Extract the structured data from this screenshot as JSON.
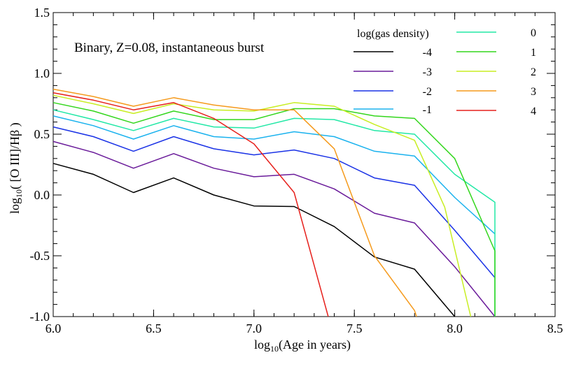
{
  "chart_data": {
    "type": "line",
    "annotation": "Binary, Z=0.08, instantaneous burst",
    "xlabel": {
      "prefix": "log",
      "sub": "10",
      "rest": "(Age in years)"
    },
    "ylabel": {
      "prefix": "log",
      "sub": "10",
      "rest": "( [O III]/Hβ )"
    },
    "xlim": [
      6.0,
      8.5
    ],
    "ylim": [
      -1.0,
      1.5
    ],
    "x_ticks": [
      6.0,
      6.5,
      7.0,
      7.5,
      8.0,
      8.5
    ],
    "x_tick_labels": [
      "6.0",
      "6.5",
      "7.0",
      "7.5",
      "8.0",
      "8.5"
    ],
    "y_ticks": [
      -1.0,
      -0.5,
      0.0,
      0.5,
      1.0,
      1.5
    ],
    "y_tick_labels": [
      "-1.0",
      "-0.5",
      "0.0",
      "0.5",
      "1.0",
      "1.5"
    ],
    "legend_title": "log(gas density)",
    "legend_placement": "top-right",
    "series": [
      {
        "name": "-4",
        "color": "#000000",
        "points": [
          [
            6.0,
            0.26
          ],
          [
            6.2,
            0.17
          ],
          [
            6.4,
            0.02
          ],
          [
            6.6,
            0.14
          ],
          [
            6.8,
            0.0
          ],
          [
            7.0,
            -0.09
          ],
          [
            7.2,
            -0.095
          ],
          [
            7.4,
            -0.26
          ],
          [
            7.6,
            -0.51
          ],
          [
            7.8,
            -0.61
          ],
          [
            8.0,
            -1.0
          ]
        ]
      },
      {
        "name": "-3",
        "color": "#6a1b9a",
        "points": [
          [
            6.0,
            0.44
          ],
          [
            6.2,
            0.35
          ],
          [
            6.4,
            0.22
          ],
          [
            6.6,
            0.34
          ],
          [
            6.8,
            0.22
          ],
          [
            7.0,
            0.15
          ],
          [
            7.2,
            0.17
          ],
          [
            7.4,
            0.05
          ],
          [
            7.6,
            -0.15
          ],
          [
            7.8,
            -0.23
          ],
          [
            8.0,
            -0.59
          ],
          [
            8.2,
            -1.0
          ]
        ]
      },
      {
        "name": "-2",
        "color": "#1a32e6",
        "points": [
          [
            6.0,
            0.56
          ],
          [
            6.2,
            0.48
          ],
          [
            6.4,
            0.36
          ],
          [
            6.6,
            0.48
          ],
          [
            6.8,
            0.38
          ],
          [
            7.0,
            0.33
          ],
          [
            7.2,
            0.37
          ],
          [
            7.4,
            0.3
          ],
          [
            7.6,
            0.14
          ],
          [
            7.8,
            0.08
          ],
          [
            8.0,
            -0.29
          ],
          [
            8.2,
            -0.68
          ]
        ]
      },
      {
        "name": "-1",
        "color": "#1ab2ee",
        "points": [
          [
            6.0,
            0.65
          ],
          [
            6.2,
            0.57
          ],
          [
            6.4,
            0.46
          ],
          [
            6.6,
            0.57
          ],
          [
            6.8,
            0.48
          ],
          [
            7.0,
            0.46
          ],
          [
            7.2,
            0.52
          ],
          [
            7.4,
            0.48
          ],
          [
            7.6,
            0.36
          ],
          [
            7.8,
            0.32
          ],
          [
            8.0,
            -0.02
          ],
          [
            8.2,
            -0.32
          ]
        ]
      },
      {
        "name": "0",
        "color": "#22e8a6",
        "points": [
          [
            6.0,
            0.7
          ],
          [
            6.2,
            0.62
          ],
          [
            6.4,
            0.53
          ],
          [
            6.6,
            0.63
          ],
          [
            6.8,
            0.56
          ],
          [
            7.0,
            0.55
          ],
          [
            7.2,
            0.63
          ],
          [
            7.4,
            0.62
          ],
          [
            7.6,
            0.53
          ],
          [
            7.8,
            0.5
          ],
          [
            8.0,
            0.17
          ],
          [
            8.2,
            -0.06
          ],
          [
            8.2,
            -1.0
          ]
        ]
      },
      {
        "name": "1",
        "color": "#33d61c",
        "points": [
          [
            6.0,
            0.76
          ],
          [
            6.2,
            0.69
          ],
          [
            6.4,
            0.59
          ],
          [
            6.6,
            0.69
          ],
          [
            6.8,
            0.62
          ],
          [
            7.0,
            0.62
          ],
          [
            7.2,
            0.71
          ],
          [
            7.4,
            0.71
          ],
          [
            7.6,
            0.65
          ],
          [
            7.8,
            0.63
          ],
          [
            8.0,
            0.3
          ],
          [
            8.2,
            -0.46
          ],
          [
            8.2,
            -1.0
          ]
        ]
      },
      {
        "name": "2",
        "color": "#c8ee22",
        "points": [
          [
            6.0,
            0.82
          ],
          [
            6.2,
            0.75
          ],
          [
            6.4,
            0.67
          ],
          [
            6.6,
            0.75
          ],
          [
            6.8,
            0.7
          ],
          [
            7.0,
            0.69
          ],
          [
            7.2,
            0.76
          ],
          [
            7.4,
            0.73
          ],
          [
            7.6,
            0.58
          ],
          [
            7.8,
            0.45
          ],
          [
            7.95,
            -0.1
          ],
          [
            8.08,
            -1.0
          ]
        ]
      },
      {
        "name": "3",
        "color": "#f59a1c",
        "points": [
          [
            6.0,
            0.87
          ],
          [
            6.2,
            0.81
          ],
          [
            6.4,
            0.73
          ],
          [
            6.6,
            0.8
          ],
          [
            6.8,
            0.74
          ],
          [
            7.0,
            0.7
          ],
          [
            7.2,
            0.7
          ],
          [
            7.4,
            0.38
          ],
          [
            7.6,
            -0.5
          ],
          [
            7.8,
            -0.95
          ],
          [
            7.81,
            -1.0
          ]
        ]
      },
      {
        "name": "4",
        "color": "#e6201c",
        "points": [
          [
            6.0,
            0.84
          ],
          [
            6.2,
            0.78
          ],
          [
            6.4,
            0.7
          ],
          [
            6.6,
            0.76
          ],
          [
            6.8,
            0.63
          ],
          [
            7.0,
            0.42
          ],
          [
            7.2,
            0.02
          ],
          [
            7.37,
            -1.0
          ]
        ]
      }
    ]
  }
}
